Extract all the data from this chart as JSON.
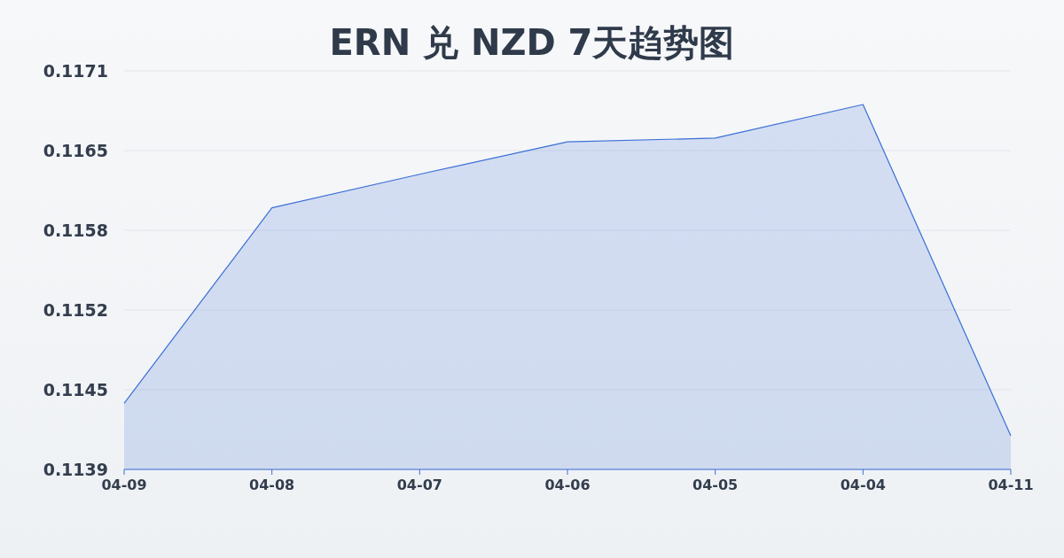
{
  "chart_data": {
    "type": "area",
    "title": "ERN 兑 NZD 7天趋势图",
    "categories": [
      "04-09",
      "04-08",
      "04-07",
      "04-06",
      "04-05",
      "04-04",
      "04-11"
    ],
    "series": [
      {
        "color": "#3b6fd6",
        "values": [
          0.11443,
          0.116,
          0.11627,
          0.11653,
          0.11656,
          0.11683,
          0.11417
        ]
      }
    ],
    "ylim": [
      0.1139,
      0.1171
    ],
    "yticks": [
      {
        "value": 0.1139,
        "label": "0.1139"
      },
      {
        "value": 0.11454,
        "label": "0.1145"
      },
      {
        "value": 0.11518,
        "label": "0.1152"
      },
      {
        "value": 0.11582,
        "label": "0.1158"
      },
      {
        "value": 0.11646,
        "label": "0.1165"
      },
      {
        "value": 0.1171,
        "label": "0.1171"
      }
    ],
    "grid": "y"
  }
}
